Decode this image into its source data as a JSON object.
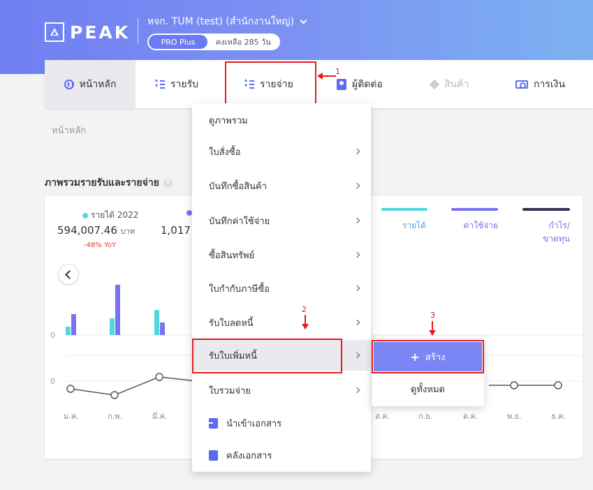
{
  "header": {
    "logo_text": "PEAK",
    "company": "หจก. TUM (test) (สำนักงานใหญ่)",
    "plan_badge": "PRO Plus",
    "plan_days": "คงเหลือ 285 วัน"
  },
  "nav": {
    "items": [
      {
        "label": "หน้าหลัก",
        "icon": "home-icon"
      },
      {
        "label": "รายรับ",
        "icon": "list-icon"
      },
      {
        "label": "รายจ่าย",
        "icon": "list-icon"
      },
      {
        "label": "ผู้ติดต่อ",
        "icon": "contact-icon"
      },
      {
        "label": "สินค้า",
        "icon": "box-icon"
      },
      {
        "label": "การเงิน",
        "icon": "money-icon"
      }
    ]
  },
  "annotations": {
    "step1": "1",
    "step2": "2",
    "step3": "3"
  },
  "breadcrumb": "หน้าหลัก",
  "section_title": "ภาพรวมรายรับและรายจ่าย",
  "stats": {
    "income_legend": "รายได้ 2022",
    "income_value": "594,007.46",
    "income_unit": "บาท",
    "income_yoy": "-48% YoY",
    "expense_value": "1,017"
  },
  "legend": [
    {
      "label": "รายได้",
      "color": "#4fd8e0"
    },
    {
      "label": "ค่าใช้จ่าย",
      "color": "#7a72f0"
    },
    {
      "label": "กำไร/ขาดทุน",
      "color": "#333355"
    }
  ],
  "chart_data": {
    "type": "bar",
    "categories": [
      "ม.ค.",
      "ก.พ.",
      "มี.ค.",
      "ส.ค.",
      "ก.ย.",
      "ต.ค.",
      "พ.ย.",
      "ธ.ค."
    ],
    "zero_label": "0",
    "bars_visible_months": [
      "ม.ค.",
      "ก.พ.",
      "มี.ค."
    ],
    "income_bars": [
      12,
      24,
      36
    ],
    "expense_bars": [
      30,
      72,
      18
    ],
    "profit_line_visible_months": [
      "ม.ค.",
      "ก.พ.",
      "มี.ค.",
      "พ.ย.",
      "ธ.ค."
    ],
    "profit_line": [
      -5,
      -14,
      12,
      0,
      0
    ]
  },
  "dropdown": {
    "items": [
      {
        "label": "ดูภาพรวม",
        "has_sub": false
      },
      {
        "label": "ใบสั่งซื้อ",
        "has_sub": true
      },
      {
        "label": "บันทึกซื้อสินค้า",
        "has_sub": true
      },
      {
        "label": "บันทึกค่าใช้จ่าย",
        "has_sub": true
      },
      {
        "label": "ซื้อสินทรัพย์",
        "has_sub": true
      },
      {
        "label": "ใบกำกับภาษีซื้อ",
        "has_sub": true
      },
      {
        "label": "รับใบลดหนี้",
        "has_sub": true
      },
      {
        "label": "รับใบเพิ่มหนี้",
        "has_sub": true
      },
      {
        "label": "ใบรวมจ่าย",
        "has_sub": true
      }
    ],
    "import_label": "นำเข้าเอกสาร",
    "archive_label": "คลังเอกสาร"
  },
  "submenu": {
    "create_label": "สร้าง",
    "view_all_label": "ดูทั้งหมด"
  }
}
